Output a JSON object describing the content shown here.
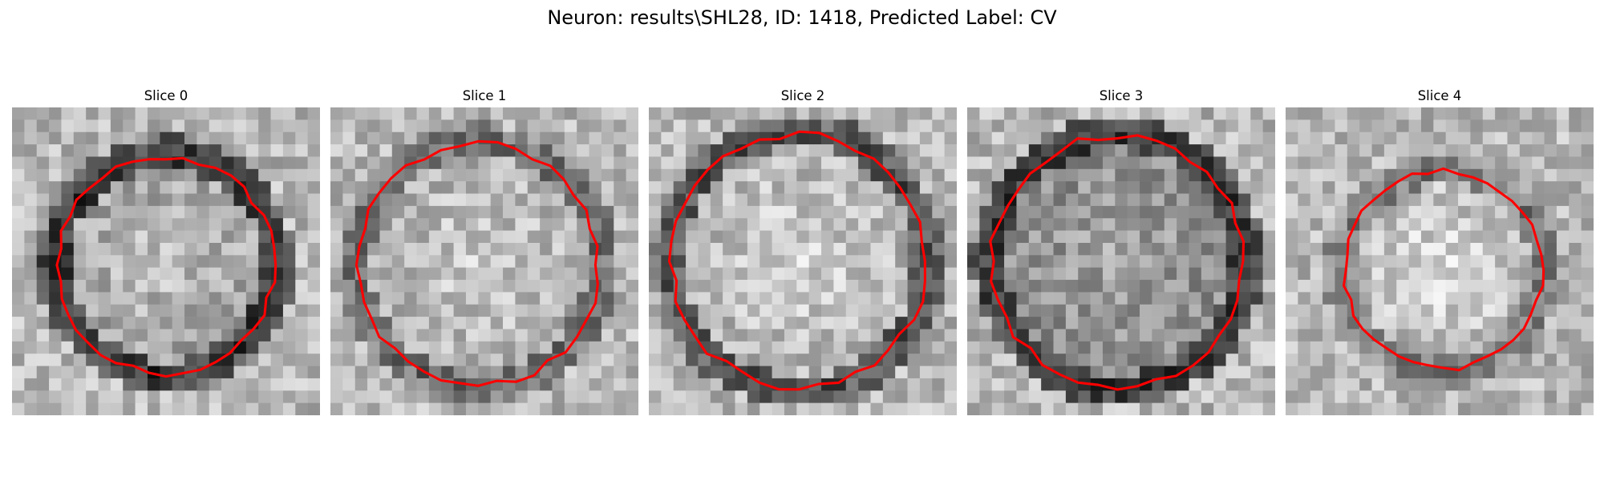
{
  "figure": {
    "title": "Neuron: results\\SHL28, ID: 1418, Predicted Label: CV",
    "contour_color": "#ff0000",
    "colormap": "gray",
    "panels": [
      {
        "title": "Slice 0",
        "seed": 11,
        "ring_dark": 0.35,
        "center_bright": 0.75,
        "cx": 12.5,
        "cy": 12.8,
        "r": 8.8
      },
      {
        "title": "Slice 1",
        "seed": 23,
        "ring_dark": 0.55,
        "center_bright": 0.8,
        "cx": 12.0,
        "cy": 12.8,
        "r": 9.8
      },
      {
        "title": "Slice 2",
        "seed": 37,
        "ring_dark": 0.45,
        "center_bright": 0.82,
        "cx": 12.2,
        "cy": 12.5,
        "r": 10.3
      },
      {
        "title": "Slice 3",
        "seed": 41,
        "ring_dark": 0.35,
        "center_bright": 0.65,
        "cx": 12.2,
        "cy": 12.5,
        "r": 10.2
      },
      {
        "title": "Slice 4",
        "seed": 53,
        "ring_dark": 0.6,
        "center_bright": 0.85,
        "cx": 12.8,
        "cy": 13.2,
        "r": 8.0
      }
    ]
  }
}
